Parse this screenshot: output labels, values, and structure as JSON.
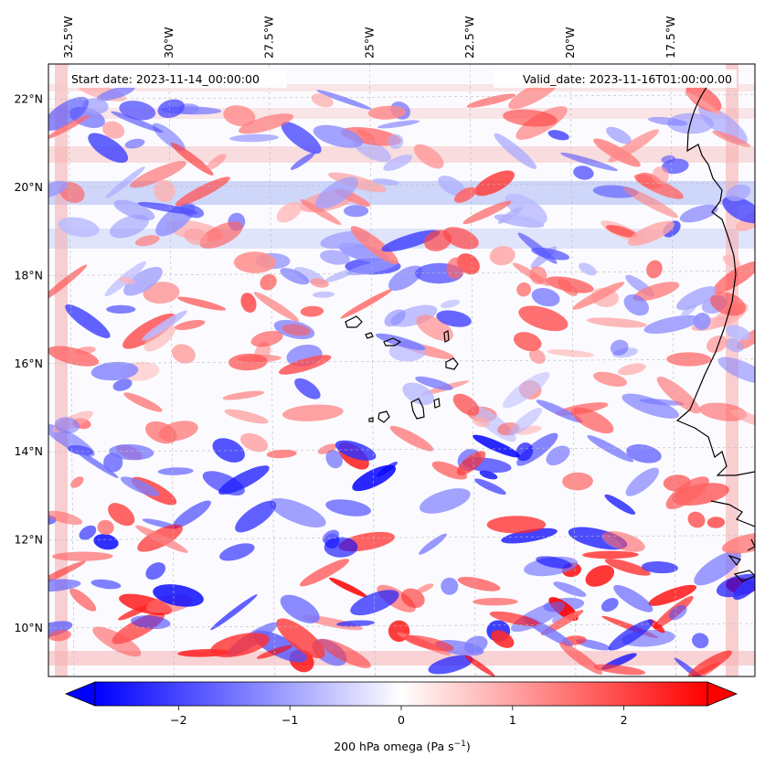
{
  "map": {
    "variable_label": "200 hPa omega (Pa s",
    "variable_unit_exponent": "−1",
    "variable_label_close": ")",
    "start_date": "Start date: 2023-11-14_00:00:00",
    "valid_date": "Valid_date: 2023-11-16T01:00:00.00",
    "extent": {
      "lon_min": -33.0,
      "lon_max": -15.4,
      "lat_min": 8.9,
      "lat_max": 22.8
    },
    "lon_ticks": [
      "32.5°W",
      "30°W",
      "27.5°W",
      "25°W",
      "22.5°W",
      "20°W",
      "17.5°W"
    ],
    "lon_tick_values": [
      -32.5,
      -30.0,
      -27.5,
      -25.0,
      -22.5,
      -20.0,
      -17.5
    ],
    "lat_ticks": [
      "10°N",
      "12°N",
      "14°N",
      "16°N",
      "18°N",
      "20°N",
      "22°N"
    ],
    "lat_tick_values": [
      10,
      12,
      14,
      16,
      18,
      20,
      22
    ],
    "colormap": "bwr",
    "colors": {
      "negative": "#0000ff",
      "zero": "#ffffff",
      "positive": "#ff0000",
      "coastline": "#000000",
      "grid": "#bbbbbb"
    }
  },
  "colorbar": {
    "min": -2.75,
    "max": 2.75,
    "ticks": [
      -2,
      -1,
      0,
      1,
      2
    ],
    "tick_labels": [
      "−2",
      "−1",
      "0",
      "1",
      "2"
    ],
    "extend": "both"
  }
}
